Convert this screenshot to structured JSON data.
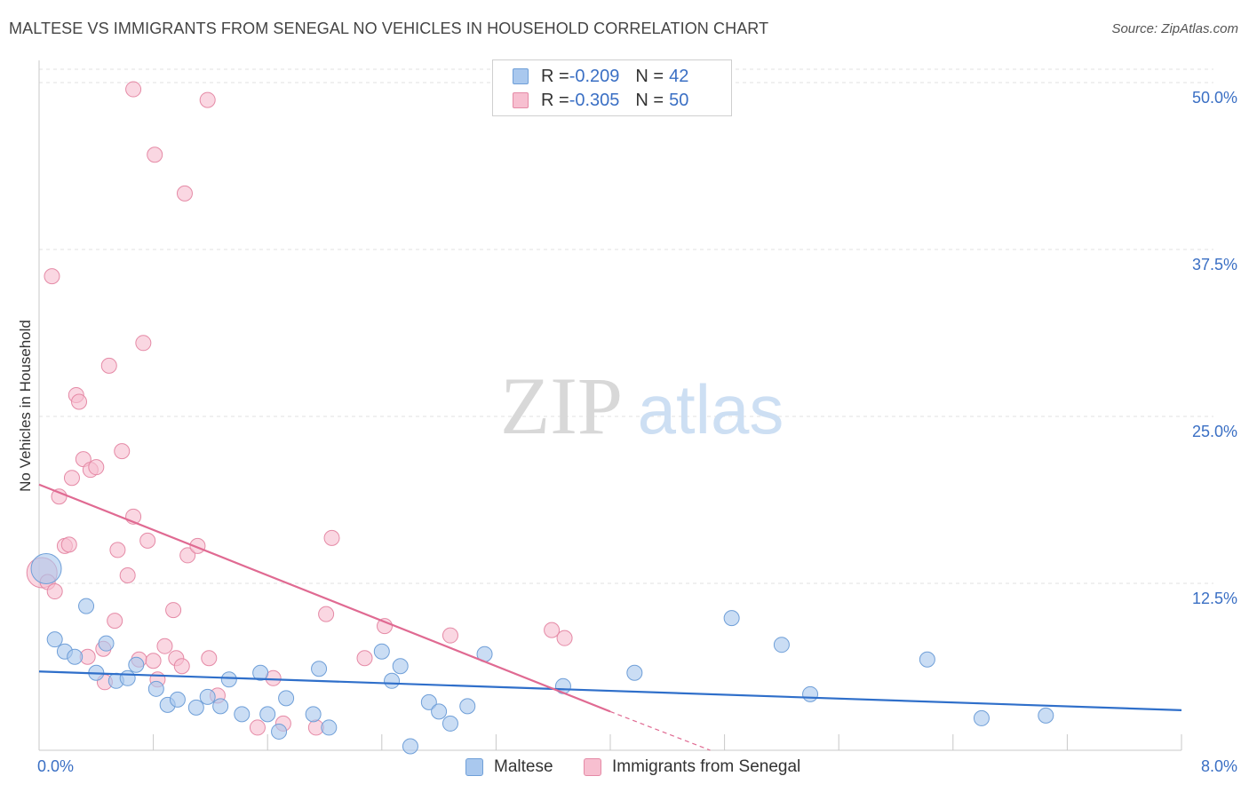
{
  "title": "MALTESE VS IMMIGRANTS FROM SENEGAL NO VEHICLES IN HOUSEHOLD CORRELATION CHART",
  "source": "Source: ZipAtlas.com",
  "watermark": {
    "zip": "ZIP",
    "atlas": "atlas"
  },
  "legend": {
    "rows": [
      {
        "r_label": "R = ",
        "r_value": "-0.209",
        "n_label": "N = ",
        "n_value": "42",
        "color": "#a9c8ee",
        "border": "#6f9fd8"
      },
      {
        "r_label": "R = ",
        "r_value": "-0.305",
        "n_label": "N = ",
        "n_value": "50",
        "color": "#f7bfd0",
        "border": "#e58aa6"
      }
    ]
  },
  "bottom_legend": [
    {
      "label": "Maltese",
      "color": "#a9c8ee",
      "border": "#6f9fd8"
    },
    {
      "label": "Immigrants from Senegal",
      "color": "#f7bfd0",
      "border": "#e58aa6"
    }
  ],
  "chart_data": {
    "type": "scatter",
    "title": "MALTESE VS IMMIGRANTS FROM SENEGAL NO VEHICLES IN HOUSEHOLD CORRELATION CHART",
    "xlabel": "",
    "ylabel": "No Vehicles in Household",
    "xlim": [
      0,
      8
    ],
    "ylim": [
      0,
      51
    ],
    "x_tick_labels": [
      "0.0%",
      "8.0%"
    ],
    "y_ticks": [
      12.5,
      25.0,
      37.5,
      50.0
    ],
    "y_tick_labels": [
      "12.5%",
      "25.0%",
      "37.5%",
      "50.0%"
    ],
    "grid": true,
    "legend_position": "top-center",
    "series": [
      {
        "name": "Maltese",
        "color": "#6f9fd8",
        "fill": "#a9c8ee",
        "trend": {
          "x": [
            0,
            8
          ],
          "y": [
            5.9,
            3.0
          ],
          "color": "#2f6fca"
        },
        "points": [
          {
            "x": 0.05,
            "y": 13.6,
            "big": true
          },
          {
            "x": 0.11,
            "y": 8.3
          },
          {
            "x": 0.18,
            "y": 7.4
          },
          {
            "x": 0.25,
            "y": 7.0
          },
          {
            "x": 0.33,
            "y": 10.8
          },
          {
            "x": 0.4,
            "y": 5.8
          },
          {
            "x": 0.47,
            "y": 8.0
          },
          {
            "x": 0.54,
            "y": 5.2
          },
          {
            "x": 0.62,
            "y": 5.4
          },
          {
            "x": 0.68,
            "y": 6.4
          },
          {
            "x": 0.82,
            "y": 4.6
          },
          {
            "x": 0.9,
            "y": 3.4
          },
          {
            "x": 0.97,
            "y": 3.8
          },
          {
            "x": 1.1,
            "y": 3.2
          },
          {
            "x": 1.18,
            "y": 4.0
          },
          {
            "x": 1.27,
            "y": 3.3
          },
          {
            "x": 1.33,
            "y": 5.3
          },
          {
            "x": 1.42,
            "y": 2.7
          },
          {
            "x": 1.55,
            "y": 5.8
          },
          {
            "x": 1.6,
            "y": 2.7
          },
          {
            "x": 1.68,
            "y": 1.4
          },
          {
            "x": 1.73,
            "y": 3.9
          },
          {
            "x": 1.92,
            "y": 2.7
          },
          {
            "x": 1.96,
            "y": 6.1
          },
          {
            "x": 2.03,
            "y": 1.7
          },
          {
            "x": 2.4,
            "y": 7.4
          },
          {
            "x": 2.47,
            "y": 5.2
          },
          {
            "x": 2.53,
            "y": 6.3
          },
          {
            "x": 2.6,
            "y": 0.3
          },
          {
            "x": 2.73,
            "y": 3.6
          },
          {
            "x": 2.8,
            "y": 2.9
          },
          {
            "x": 2.88,
            "y": 2.0
          },
          {
            "x": 3.0,
            "y": 3.3
          },
          {
            "x": 3.12,
            "y": 7.2
          },
          {
            "x": 3.67,
            "y": 4.8
          },
          {
            "x": 4.17,
            "y": 5.8
          },
          {
            "x": 4.85,
            "y": 9.9
          },
          {
            "x": 5.2,
            "y": 7.9
          },
          {
            "x": 5.4,
            "y": 4.2
          },
          {
            "x": 6.22,
            "y": 6.8
          },
          {
            "x": 6.6,
            "y": 2.4
          },
          {
            "x": 7.05,
            "y": 2.6
          }
        ]
      },
      {
        "name": "Immigrants from Senegal",
        "color": "#e58aa6",
        "fill": "#f7bfd0",
        "trend": {
          "x": [
            0,
            4.0
          ],
          "y": [
            19.9,
            2.9
          ],
          "extend_to": [
            4.7,
            0.0
          ],
          "color": "#e06a92"
        },
        "points": [
          {
            "x": 0.02,
            "y": 13.3,
            "big": true
          },
          {
            "x": 0.09,
            "y": 35.5
          },
          {
            "x": 0.06,
            "y": 12.6
          },
          {
            "x": 0.11,
            "y": 11.9
          },
          {
            "x": 0.14,
            "y": 19.0
          },
          {
            "x": 0.18,
            "y": 15.3
          },
          {
            "x": 0.21,
            "y": 15.4
          },
          {
            "x": 0.23,
            "y": 20.4
          },
          {
            "x": 0.26,
            "y": 26.6
          },
          {
            "x": 0.28,
            "y": 26.1
          },
          {
            "x": 0.31,
            "y": 21.8
          },
          {
            "x": 0.34,
            "y": 7.0
          },
          {
            "x": 0.36,
            "y": 21.0
          },
          {
            "x": 0.4,
            "y": 21.2
          },
          {
            "x": 0.45,
            "y": 7.6
          },
          {
            "x": 0.46,
            "y": 5.1
          },
          {
            "x": 0.49,
            "y": 28.8
          },
          {
            "x": 0.53,
            "y": 9.7
          },
          {
            "x": 0.55,
            "y": 15.0
          },
          {
            "x": 0.58,
            "y": 22.4
          },
          {
            "x": 0.62,
            "y": 13.1
          },
          {
            "x": 0.66,
            "y": 17.5
          },
          {
            "x": 0.7,
            "y": 6.8
          },
          {
            "x": 0.73,
            "y": 30.5
          },
          {
            "x": 0.76,
            "y": 15.7
          },
          {
            "x": 0.8,
            "y": 6.7
          },
          {
            "x": 0.83,
            "y": 5.3
          },
          {
            "x": 0.88,
            "y": 7.8
          },
          {
            "x": 0.94,
            "y": 10.5
          },
          {
            "x": 0.96,
            "y": 6.9
          },
          {
            "x": 1.0,
            "y": 6.3
          },
          {
            "x": 1.04,
            "y": 14.6
          },
          {
            "x": 1.11,
            "y": 15.3
          },
          {
            "x": 1.19,
            "y": 6.9
          },
          {
            "x": 1.25,
            "y": 4.1
          },
          {
            "x": 0.66,
            "y": 49.5
          },
          {
            "x": 0.81,
            "y": 44.6
          },
          {
            "x": 1.02,
            "y": 41.7
          },
          {
            "x": 1.18,
            "y": 48.7
          },
          {
            "x": 1.53,
            "y": 1.7
          },
          {
            "x": 1.64,
            "y": 5.4
          },
          {
            "x": 1.71,
            "y": 2.0
          },
          {
            "x": 1.94,
            "y": 1.7
          },
          {
            "x": 2.01,
            "y": 10.2
          },
          {
            "x": 2.05,
            "y": 15.9
          },
          {
            "x": 2.28,
            "y": 6.9
          },
          {
            "x": 2.42,
            "y": 9.3
          },
          {
            "x": 2.88,
            "y": 8.6
          },
          {
            "x": 3.59,
            "y": 9.0
          },
          {
            "x": 3.68,
            "y": 8.4
          }
        ]
      }
    ]
  }
}
